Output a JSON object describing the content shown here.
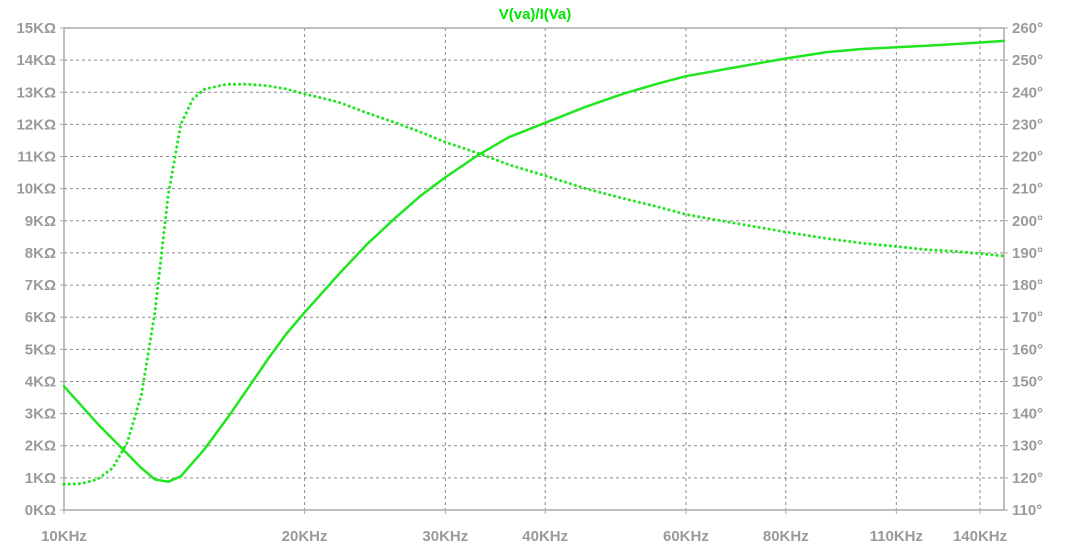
{
  "chart_data": {
    "type": "line",
    "title": "V(va)/I(Va)",
    "x_scale": "log",
    "xlim": [
      10000,
      150000
    ],
    "ylim_left": [
      0,
      15000
    ],
    "ylim_right": [
      110,
      260
    ],
    "grid": true,
    "colors": {
      "trace": "#1fe61f",
      "grid": "#8c8c8c",
      "tick_text": "#9a9a9a",
      "frame": "#aaaaaa"
    },
    "x_ticks": [
      {
        "value": 10000,
        "label": "10KHz"
      },
      {
        "value": 20000,
        "label": "20KHz"
      },
      {
        "value": 30000,
        "label": "30KHz"
      },
      {
        "value": 40000,
        "label": "40KHz"
      },
      {
        "value": 60000,
        "label": "60KHz"
      },
      {
        "value": 80000,
        "label": "80KHz"
      },
      {
        "value": 110000,
        "label": "110KHz"
      },
      {
        "value": 140000,
        "label": "140KHz"
      }
    ],
    "y_left_ticks": [
      {
        "value": 0,
        "label": "0KΩ"
      },
      {
        "value": 1000,
        "label": "1KΩ"
      },
      {
        "value": 2000,
        "label": "2KΩ"
      },
      {
        "value": 3000,
        "label": "3KΩ"
      },
      {
        "value": 4000,
        "label": "4KΩ"
      },
      {
        "value": 5000,
        "label": "5KΩ"
      },
      {
        "value": 6000,
        "label": "6KΩ"
      },
      {
        "value": 7000,
        "label": "7KΩ"
      },
      {
        "value": 8000,
        "label": "8KΩ"
      },
      {
        "value": 9000,
        "label": "9KΩ"
      },
      {
        "value": 10000,
        "label": "10KΩ"
      },
      {
        "value": 11000,
        "label": "11KΩ"
      },
      {
        "value": 12000,
        "label": "12KΩ"
      },
      {
        "value": 13000,
        "label": "13KΩ"
      },
      {
        "value": 14000,
        "label": "14KΩ"
      },
      {
        "value": 15000,
        "label": "15KΩ"
      }
    ],
    "y_right_ticks": [
      {
        "value": 110,
        "label": "110°"
      },
      {
        "value": 120,
        "label": "120°"
      },
      {
        "value": 130,
        "label": "130°"
      },
      {
        "value": 140,
        "label": "140°"
      },
      {
        "value": 150,
        "label": "150°"
      },
      {
        "value": 160,
        "label": "160°"
      },
      {
        "value": 170,
        "label": "170°"
      },
      {
        "value": 180,
        "label": "180°"
      },
      {
        "value": 190,
        "label": "190°"
      },
      {
        "value": 200,
        "label": "200°"
      },
      {
        "value": 210,
        "label": "210°"
      },
      {
        "value": 220,
        "label": "220°"
      },
      {
        "value": 230,
        "label": "230°"
      },
      {
        "value": 240,
        "label": "240°"
      },
      {
        "value": 250,
        "label": "250°"
      },
      {
        "value": 260,
        "label": "260°"
      }
    ],
    "series": [
      {
        "axis": "left",
        "style": "solid",
        "x": [
          10000,
          11000,
          12000,
          12500,
          13000,
          13500,
          14000,
          15000,
          16000,
          17000,
          18000,
          19000,
          20000,
          22000,
          24000,
          26000,
          28000,
          30000,
          33000,
          36000,
          40000,
          45000,
          50000,
          55000,
          60000,
          70000,
          80000,
          90000,
          100000,
          110000,
          120000,
          130000,
          140000,
          150000
        ],
        "y": [
          3850,
          2700,
          1750,
          1300,
          950,
          880,
          1050,
          1900,
          2850,
          3800,
          4700,
          5500,
          6150,
          7300,
          8300,
          9100,
          9800,
          10350,
          11050,
          11600,
          12050,
          12550,
          12950,
          13250,
          13500,
          13800,
          14050,
          14250,
          14350,
          14400,
          14450,
          14500,
          14550,
          14600
        ]
      },
      {
        "axis": "right",
        "style": "dotted",
        "x": [
          10000,
          10500,
          11000,
          11500,
          12000,
          12500,
          13000,
          13500,
          14000,
          14500,
          15000,
          16000,
          17000,
          18000,
          19000,
          20000,
          22000,
          24000,
          26000,
          28000,
          30000,
          33000,
          36000,
          40000,
          45000,
          50000,
          55000,
          60000,
          70000,
          80000,
          90000,
          100000,
          110000,
          120000,
          130000,
          140000,
          150000
        ],
        "y": [
          118,
          118.2,
          119.5,
          123,
          131,
          146,
          172,
          208,
          230,
          238,
          241,
          242.5,
          242.5,
          242,
          241,
          239.5,
          237,
          233.5,
          230.5,
          227.5,
          224.5,
          221,
          217.5,
          214,
          210,
          207,
          204.5,
          202,
          199,
          196.5,
          194.5,
          193,
          192,
          191,
          190.5,
          189.8,
          189
        ]
      }
    ]
  }
}
